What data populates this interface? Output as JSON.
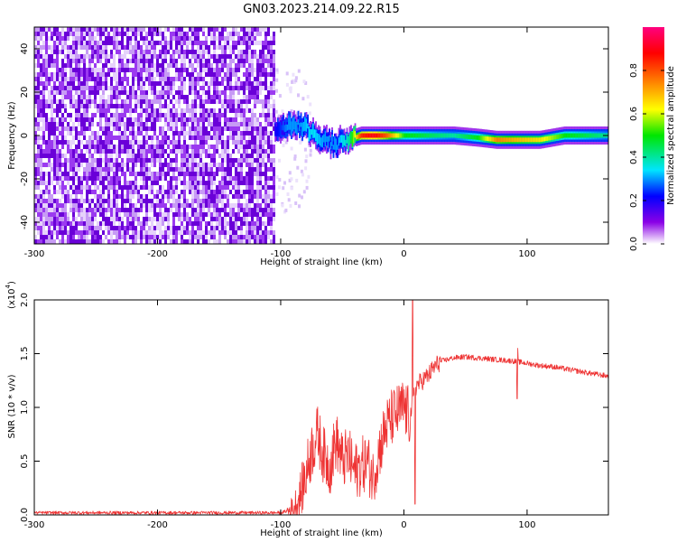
{
  "title": "GN03.2023.214.09.22.R15",
  "chart_data": [
    {
      "type": "heatmap",
      "xlabel": "Height of straight line (km)",
      "ylabel": "Frequency (Hz)",
      "xlim": [
        -300,
        166
      ],
      "ylim": [
        -50,
        50
      ],
      "x_ticks": [
        -300,
        -200,
        -100,
        0,
        100
      ],
      "x_tick_labels": [
        "-300",
        "-200",
        "-100",
        "0",
        "100"
      ],
      "y_ticks": [
        -40,
        -20,
        0,
        20,
        40
      ],
      "y_tick_labels": [
        "-40",
        "-20",
        "0",
        "20",
        "40"
      ],
      "colorbar": {
        "label": "Normalized spectral amplitude",
        "range": [
          0,
          1
        ],
        "ticks": [
          0.0,
          0.2,
          0.4,
          0.6,
          0.8
        ],
        "tick_labels": [
          "0.0",
          "0.2",
          "0.4",
          "0.6",
          "0.8"
        ],
        "colors": [
          "#ffffff",
          "#8a00e6",
          "#0000ff",
          "#00e5ff",
          "#00e600",
          "#ffff00",
          "#ff7f00",
          "#ff0000",
          "#ff007f"
        ]
      },
      "noise_region": {
        "x_from": -300,
        "x_to": -105,
        "amplitude": 0.15
      },
      "ridge": [
        {
          "x": -105,
          "y": 2,
          "amp": 0.2
        },
        {
          "x": -95,
          "y": 4,
          "amp": 0.3
        },
        {
          "x": -85,
          "y": 5,
          "amp": 0.3
        },
        {
          "x": -75,
          "y": 1,
          "amp": 0.35
        },
        {
          "x": -65,
          "y": -3,
          "amp": 0.3
        },
        {
          "x": -55,
          "y": -4,
          "amp": 0.3
        },
        {
          "x": -45,
          "y": -2,
          "amp": 0.4
        },
        {
          "x": -35,
          "y": 0,
          "amp": 0.85
        },
        {
          "x": -25,
          "y": 0,
          "amp": 0.9
        },
        {
          "x": -15,
          "y": 0,
          "amp": 0.8
        },
        {
          "x": 0,
          "y": 0,
          "amp": 0.5
        },
        {
          "x": 20,
          "y": 0,
          "amp": 0.45
        },
        {
          "x": 40,
          "y": 0,
          "amp": 0.4
        },
        {
          "x": 60,
          "y": -1,
          "amp": 0.5
        },
        {
          "x": 75,
          "y": -2,
          "amp": 0.75
        },
        {
          "x": 90,
          "y": -2,
          "amp": 0.7
        },
        {
          "x": 110,
          "y": -2,
          "amp": 0.65
        },
        {
          "x": 130,
          "y": 0,
          "amp": 0.5
        },
        {
          "x": 150,
          "y": 0,
          "amp": 0.45
        },
        {
          "x": 166,
          "y": 0,
          "amp": 0.4
        }
      ]
    },
    {
      "type": "line",
      "xlabel": "Height of straight line (km)",
      "ylabel": "SNR (10 * v/v)",
      "y_multiplier": "(x10",
      "y_multiplier_exp": "4",
      "y_multiplier_close": ")",
      "xlim": [
        -300,
        166
      ],
      "ylim": [
        0,
        2.0
      ],
      "x_ticks": [
        -300,
        -200,
        -100,
        0,
        100
      ],
      "x_tick_labels": [
        "-300",
        "-200",
        "-100",
        "0",
        "100"
      ],
      "y_ticks": [
        0.0,
        0.5,
        1.0,
        1.5,
        2.0
      ],
      "y_tick_labels": [
        "0.0",
        "0.5",
        "1.0",
        "1.5",
        "2.0"
      ],
      "color": "#ee3333",
      "series": [
        {
          "x": [
            -300,
            -250,
            -200,
            -150,
            -110,
            -100,
            -90,
            -85,
            -80,
            -75,
            -70,
            -65,
            -60,
            -55,
            -50,
            -45,
            -40,
            -35,
            -30,
            -25,
            -20,
            -15,
            -10,
            -5,
            0,
            5,
            8,
            10,
            15,
            20,
            25,
            30,
            40,
            50,
            60,
            70,
            80,
            90,
            100,
            110,
            120,
            130,
            140,
            150,
            166
          ],
          "y": [
            0.02,
            0.02,
            0.02,
            0.02,
            0.02,
            0.02,
            0.05,
            0.15,
            0.35,
            0.6,
            0.75,
            0.55,
            0.45,
            0.7,
            0.5,
            0.55,
            0.4,
            0.45,
            0.5,
            0.35,
            0.6,
            0.8,
            0.9,
            0.95,
            1.0,
            0.9,
            1.1,
            1.2,
            1.25,
            1.3,
            1.38,
            1.43,
            1.46,
            1.47,
            1.46,
            1.45,
            1.44,
            1.43,
            1.41,
            1.39,
            1.38,
            1.36,
            1.34,
            1.32,
            1.29
          ]
        }
      ],
      "spikes": [
        {
          "x": 7,
          "y": 2.0
        },
        {
          "x": 9,
          "y": 0.1
        },
        {
          "x": 92,
          "y": 1.08
        },
        {
          "x": 92.5,
          "y": 1.55
        }
      ]
    }
  ]
}
